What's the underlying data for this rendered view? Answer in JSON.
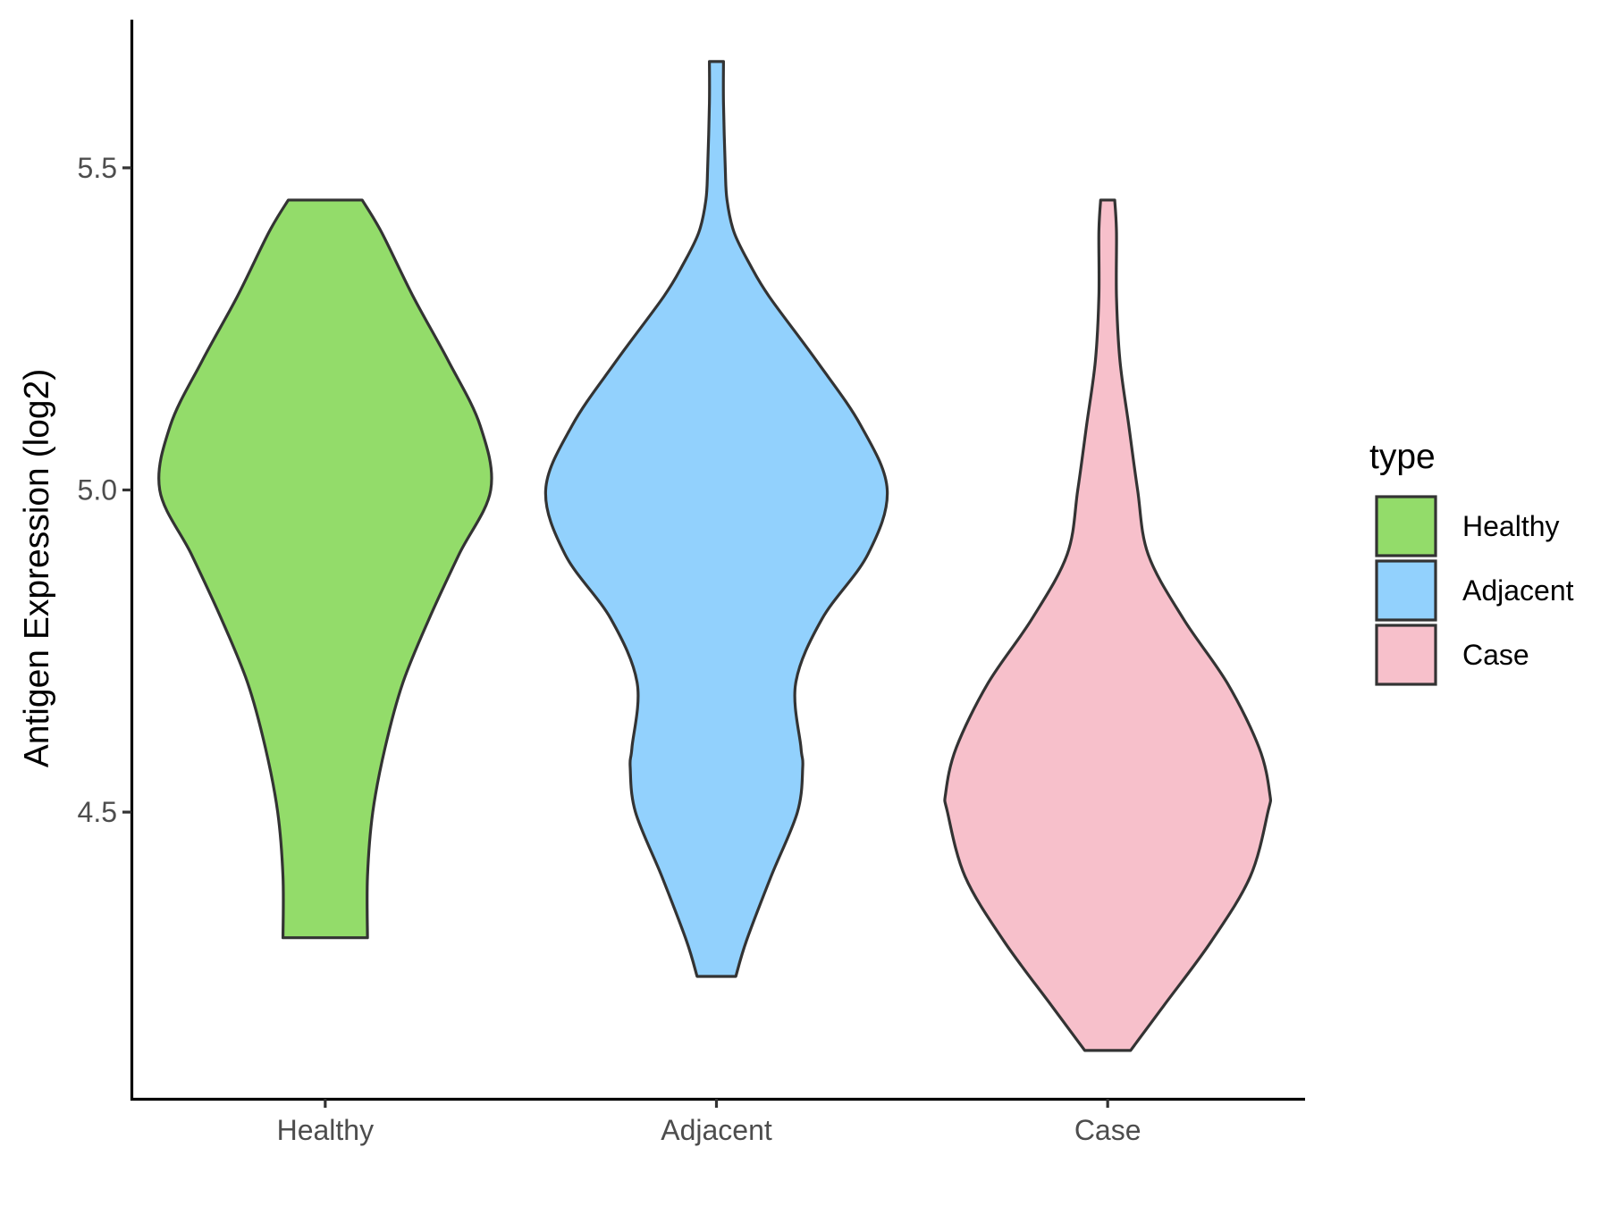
{
  "chart_data": {
    "type": "violin",
    "title": "",
    "xlabel": "",
    "ylabel": "Antigen Expression (log2)",
    "ylim": [
      4.055,
      5.73
    ],
    "yticks": [
      4.5,
      5.0,
      5.5
    ],
    "ytick_labels": [
      "4.5",
      "5.0",
      "5.5"
    ],
    "categories": [
      "Healthy",
      "Adjacent",
      "Case"
    ],
    "grid": false,
    "legend": {
      "title": "type",
      "placement": "right",
      "entries": [
        "Healthy",
        "Adjacent",
        "Case"
      ]
    },
    "colors": {
      "Healthy": "#93DC6A",
      "Adjacent": "#92D1FD",
      "Case": "#F7C0CB",
      "outline": "#333333"
    },
    "series": [
      {
        "category": "Healthy",
        "y_min": 4.305,
        "y_max": 5.45,
        "width_profile": [
          [
            4.305,
            0.24
          ],
          [
            4.4,
            0.24
          ],
          [
            4.5,
            0.27
          ],
          [
            4.6,
            0.34
          ],
          [
            4.7,
            0.44
          ],
          [
            4.8,
            0.59
          ],
          [
            4.9,
            0.76
          ],
          [
            5.0,
            0.94
          ],
          [
            5.1,
            0.88
          ],
          [
            5.2,
            0.7
          ],
          [
            5.3,
            0.5
          ],
          [
            5.4,
            0.32
          ],
          [
            5.45,
            0.21
          ]
        ]
      },
      {
        "category": "Adjacent",
        "y_min": 4.245,
        "y_max": 5.665,
        "width_profile": [
          [
            4.245,
            0.11
          ],
          [
            4.3,
            0.17
          ],
          [
            4.4,
            0.31
          ],
          [
            4.5,
            0.46
          ],
          [
            4.57,
            0.49
          ],
          [
            4.6,
            0.48
          ],
          [
            4.7,
            0.45
          ],
          [
            4.8,
            0.6
          ],
          [
            4.9,
            0.86
          ],
          [
            5.0,
            0.97
          ],
          [
            5.1,
            0.82
          ],
          [
            5.2,
            0.57
          ],
          [
            5.3,
            0.3
          ],
          [
            5.35,
            0.19
          ],
          [
            5.4,
            0.1
          ],
          [
            5.45,
            0.06
          ],
          [
            5.5,
            0.05
          ],
          [
            5.6,
            0.04
          ],
          [
            5.665,
            0.04
          ]
        ]
      },
      {
        "category": "Case",
        "y_min": 4.13,
        "y_max": 5.45,
        "width_profile": [
          [
            4.13,
            0.13
          ],
          [
            4.2,
            0.32
          ],
          [
            4.3,
            0.59
          ],
          [
            4.4,
            0.81
          ],
          [
            4.5,
            0.91
          ],
          [
            4.53,
            0.92
          ],
          [
            4.6,
            0.86
          ],
          [
            4.7,
            0.68
          ],
          [
            4.8,
            0.43
          ],
          [
            4.9,
            0.23
          ],
          [
            5.0,
            0.17
          ],
          [
            5.1,
            0.12
          ],
          [
            5.2,
            0.07
          ],
          [
            5.3,
            0.05
          ],
          [
            5.4,
            0.05
          ],
          [
            5.45,
            0.04
          ]
        ]
      }
    ]
  }
}
